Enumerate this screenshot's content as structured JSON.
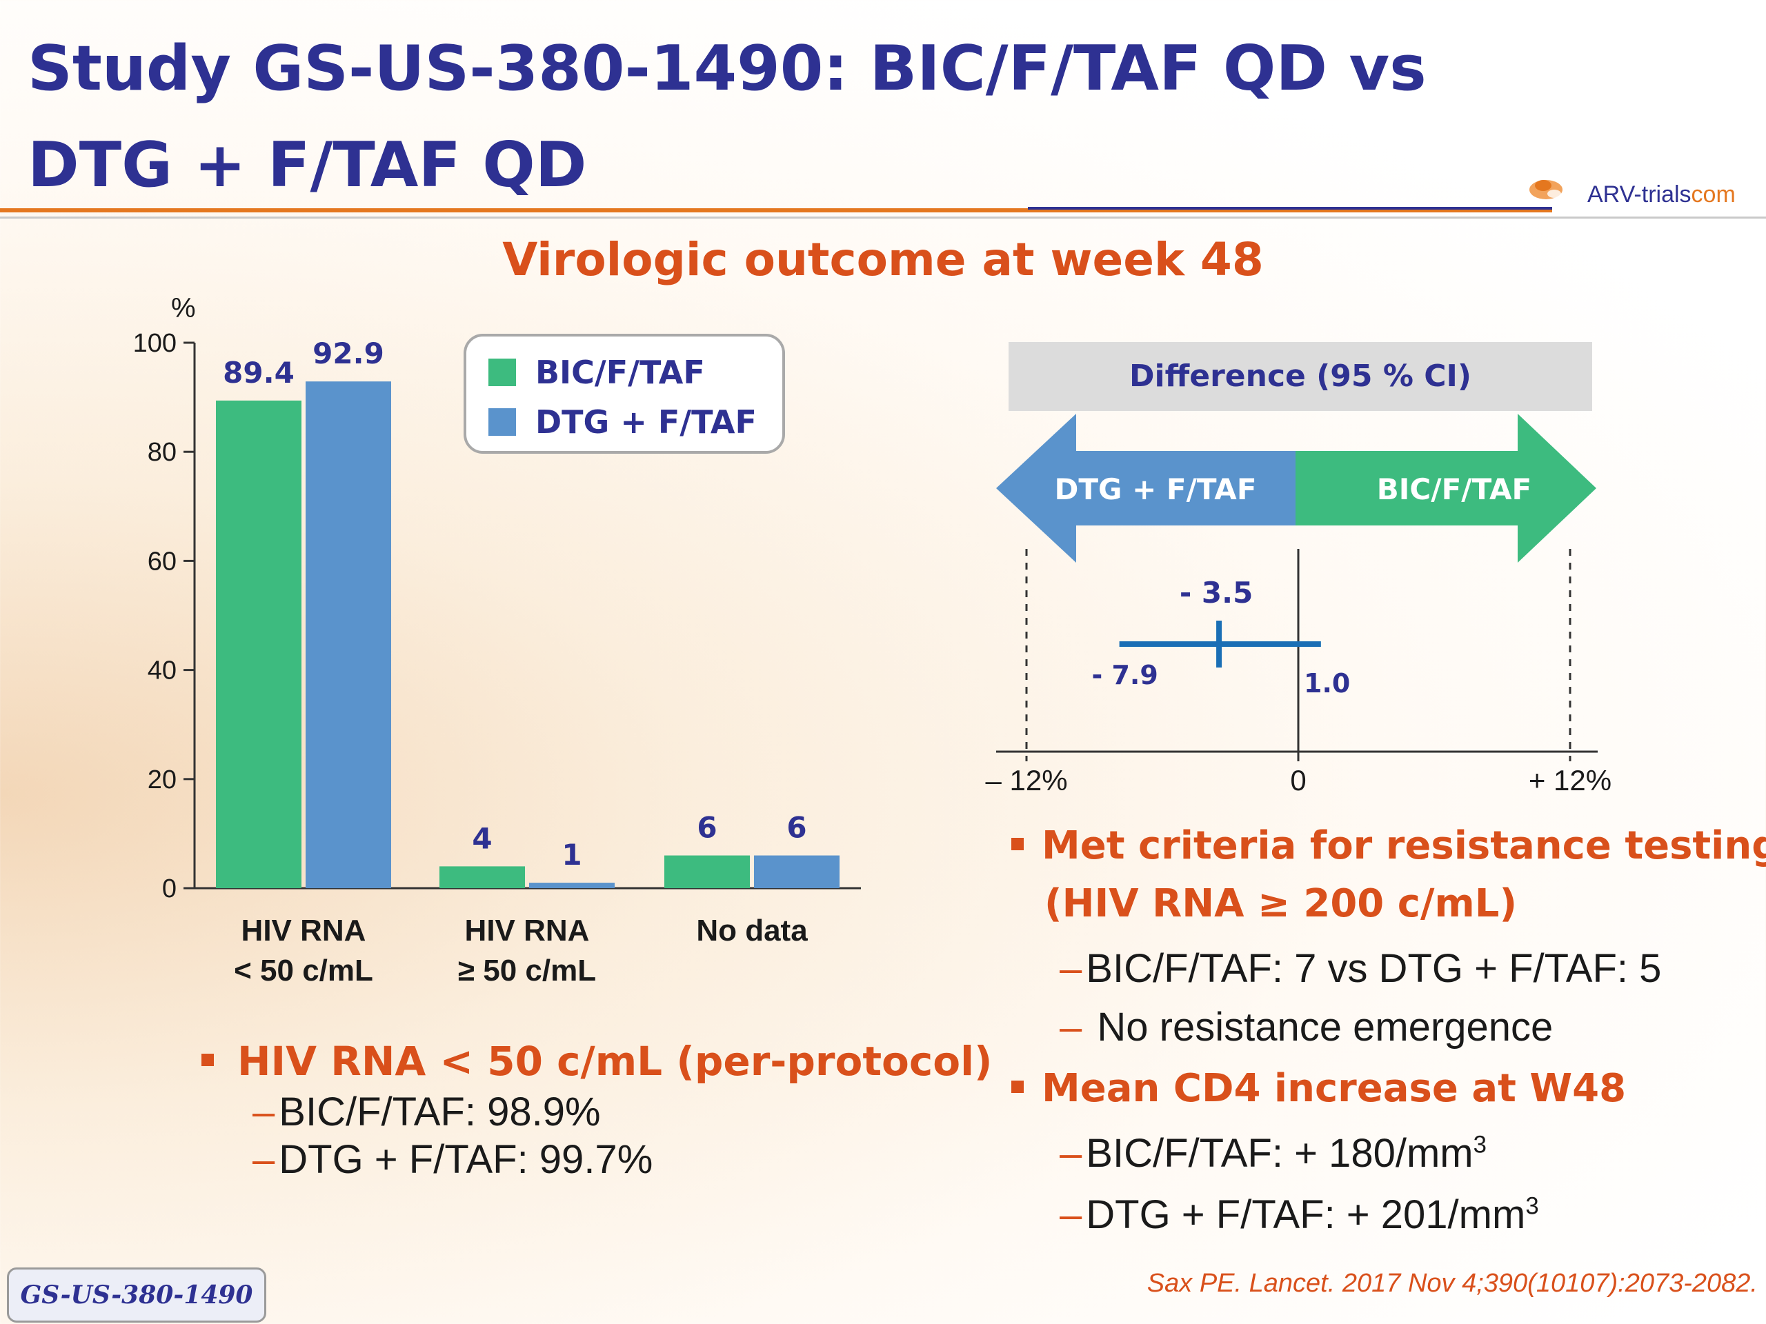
{
  "title": "Study GS-US-380-1490: BIC/F/TAF QD vs DTG + F/TAF QD",
  "logo": {
    "text_main": "ARV-trials",
    "text_suffix": "com"
  },
  "subtitle": "Virologic outcome at week 48",
  "chart_data": [
    {
      "type": "bar",
      "ylabel": "%",
      "ylim": [
        0,
        100
      ],
      "yticks": [
        0,
        20,
        40,
        60,
        80,
        100
      ],
      "categories": [
        "HIV RNA < 50 c/mL",
        "HIV RNA ≥ 50 c/mL",
        "No data"
      ],
      "category_lines": [
        [
          "HIV RNA",
          "< 50 c/mL"
        ],
        [
          "HIV RNA",
          "≥ 50 c/mL"
        ],
        [
          "No data"
        ]
      ],
      "series": [
        {
          "name": "BIC/F/TAF",
          "color": "#3dbb7f",
          "values": [
            89.4,
            4,
            6
          ]
        },
        {
          "name": "DTG + F/TAF",
          "color": "#5a93cc",
          "values": [
            92.9,
            1,
            6
          ]
        }
      ],
      "data_labels": [
        [
          "89.4",
          "4",
          "6"
        ],
        [
          "92.9",
          "1",
          "6"
        ]
      ],
      "legend": "top-right"
    },
    {
      "type": "forest",
      "header": "Difference (95 % CI)",
      "arrow_left_label": "DTG + F/TAF",
      "arrow_right_label": "BIC/F/TAF",
      "xlim": [
        -12,
        12
      ],
      "x_ticks": [
        -12,
        0,
        12
      ],
      "x_tick_labels": [
        "– 12%",
        "0",
        "+ 12%"
      ],
      "estimate": -3.5,
      "ci_low": -7.9,
      "ci_high": 1.0,
      "estimate_label": "- 3.5",
      "ci_low_label": "- 7.9",
      "ci_high_label": "1.0",
      "colors": {
        "left_arrow": "#5a93cc",
        "right_arrow": "#3dbb7f",
        "ci_line": "#1a6fb5",
        "header_bg": "#dcdcdc"
      }
    }
  ],
  "left_bullets": {
    "head": "HIV RNA < 50 c/mL (per-protocol)",
    "subs": [
      "BIC/F/TAF: 98.9%",
      "DTG + F/TAF: 99.7%"
    ]
  },
  "right_bullets": [
    {
      "head_lines": [
        "Met criteria for resistance testing",
        "(HIV RNA ≥ 200 c/mL)"
      ],
      "subs": [
        {
          "text": "BIC/F/TAF: 7 vs DTG + F/TAF: 5"
        },
        {
          "text": " No resistance emergence"
        }
      ]
    },
    {
      "head_lines": [
        "Mean CD4 increase at W48"
      ],
      "subs": [
        {
          "text": "BIC/F/TAF: + 180/mm",
          "sup": "3"
        },
        {
          "text": "DTG + F/TAF: + 201/mm",
          "sup": "3"
        }
      ]
    }
  ],
  "footer_box": "GS-US-380-1490",
  "citation": "Sax PE. Lancet. 2017 Nov 4;390(10107):2073-2082.",
  "colors": {
    "title": "#2e3192",
    "accent": "#d9501b",
    "rule": "#e4771f"
  }
}
